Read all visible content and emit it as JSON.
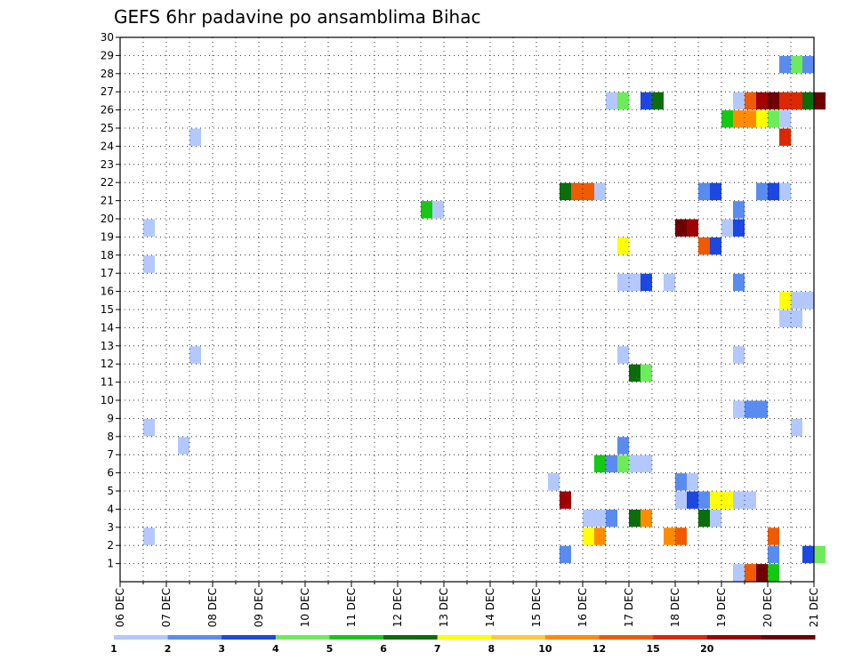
{
  "chart_data": {
    "type": "heatmap",
    "title": "GEFS 6hr padavine po ansamblima Bihac",
    "xlabel": "",
    "ylabel": "",
    "x_ticks": [
      "06 DEC",
      "07 DEC",
      "08 DEC",
      "09 DEC",
      "10 DEC",
      "11 DEC",
      "12 DEC",
      "13 DEC",
      "14 DEC",
      "15 DEC",
      "16 DEC",
      "17 DEC",
      "18 DEC",
      "19 DEC",
      "20 DEC",
      "21 DEC"
    ],
    "y_ticks": [
      "1",
      "2",
      "3",
      "4",
      "5",
      "6",
      "7",
      "8",
      "9",
      "10",
      "11",
      "12",
      "13",
      "14",
      "15",
      "16",
      "17",
      "18",
      "19",
      "20",
      "21",
      "22",
      "23",
      "24",
      "25",
      "26",
      "27",
      "28",
      "29",
      "30"
    ],
    "ylim": [
      0,
      30
    ],
    "grid": true,
    "legend": {
      "position": "bottom",
      "labels": [
        "1",
        "2",
        "3",
        "4",
        "5",
        "6",
        "7",
        "8",
        "10",
        "12",
        "15",
        "20"
      ],
      "colors": [
        "#b3c8ff",
        "#5a8cf0",
        "#1c47e0",
        "#6eeb5a",
        "#14c814",
        "#0a6e0a",
        "#ffff00",
        "#ffc83c",
        "#ff8c00",
        "#f05a00",
        "#dc2800",
        "#a00000",
        "#6e0000"
      ]
    },
    "cells": [
      {
        "day": 0.5,
        "member": 19,
        "level": 0
      },
      {
        "day": 0.5,
        "member": 17,
        "level": 0
      },
      {
        "day": 0.5,
        "member": 8,
        "level": 0
      },
      {
        "day": 0.5,
        "member": 2,
        "level": 0
      },
      {
        "day": 1.5,
        "member": 24,
        "level": 0
      },
      {
        "day": 1.5,
        "member": 12,
        "level": 0
      },
      {
        "day": 1.25,
        "member": 7,
        "level": 0
      },
      {
        "day": 6.5,
        "member": 20,
        "level": 4
      },
      {
        "day": 6.75,
        "member": 20,
        "level": 0
      },
      {
        "day": 9.25,
        "member": 5,
        "level": 0
      },
      {
        "day": 9.5,
        "member": 4,
        "level": 11
      },
      {
        "day": 9.5,
        "member": 1,
        "level": 1
      },
      {
        "day": 9.5,
        "member": 21,
        "level": 5
      },
      {
        "day": 9.75,
        "member": 21,
        "level": 9
      },
      {
        "day": 10.0,
        "member": 21,
        "level": 9
      },
      {
        "day": 10.25,
        "member": 21,
        "level": 0
      },
      {
        "day": 10.25,
        "member": 6,
        "level": 4
      },
      {
        "day": 10.5,
        "member": 6,
        "level": 1
      },
      {
        "day": 10.75,
        "member": 6,
        "level": 3
      },
      {
        "day": 11.0,
        "member": 6,
        "level": 0
      },
      {
        "day": 11.25,
        "member": 6,
        "level": 0
      },
      {
        "day": 10.0,
        "member": 3,
        "level": 0
      },
      {
        "day": 10.25,
        "member": 3,
        "level": 0
      },
      {
        "day": 10.5,
        "member": 3,
        "level": 1
      },
      {
        "day": 10.0,
        "member": 2,
        "level": 6
      },
      {
        "day": 10.25,
        "member": 2,
        "level": 8
      },
      {
        "day": 10.5,
        "member": 26,
        "level": 0
      },
      {
        "day": 10.75,
        "member": 26,
        "level": 3
      },
      {
        "day": 11.25,
        "member": 26,
        "level": 2
      },
      {
        "day": 11.5,
        "member": 26,
        "level": 5
      },
      {
        "day": 10.75,
        "member": 18,
        "level": 6
      },
      {
        "day": 10.75,
        "member": 16,
        "level": 0
      },
      {
        "day": 11.0,
        "member": 16,
        "level": 0
      },
      {
        "day": 11.25,
        "member": 16,
        "level": 2
      },
      {
        "day": 11.75,
        "member": 16,
        "level": 0
      },
      {
        "day": 10.75,
        "member": 12,
        "level": 0
      },
      {
        "day": 10.75,
        "member": 7,
        "level": 1
      },
      {
        "day": 11.0,
        "member": 11,
        "level": 5
      },
      {
        "day": 11.25,
        "member": 11,
        "level": 3
      },
      {
        "day": 11.0,
        "member": 3,
        "level": 5
      },
      {
        "day": 11.25,
        "member": 3,
        "level": 8
      },
      {
        "day": 11.75,
        "member": 2,
        "level": 8
      },
      {
        "day": 12.0,
        "member": 2,
        "level": 9
      },
      {
        "day": 12.0,
        "member": 19,
        "level": 12
      },
      {
        "day": 12.25,
        "member": 19,
        "level": 11
      },
      {
        "day": 12.0,
        "member": 5,
        "level": 1
      },
      {
        "day": 12.25,
        "member": 5,
        "level": 0
      },
      {
        "day": 12.0,
        "member": 4,
        "level": 0
      },
      {
        "day": 12.25,
        "member": 4,
        "level": 2
      },
      {
        "day": 12.5,
        "member": 4,
        "level": 1
      },
      {
        "day": 12.75,
        "member": 4,
        "level": 6
      },
      {
        "day": 13.0,
        "member": 4,
        "level": 6
      },
      {
        "day": 13.25,
        "member": 4,
        "level": 0
      },
      {
        "day": 13.5,
        "member": 4,
        "level": 0
      },
      {
        "day": 12.5,
        "member": 18,
        "level": 9
      },
      {
        "day": 12.75,
        "member": 18,
        "level": 2
      },
      {
        "day": 12.5,
        "member": 21,
        "level": 1
      },
      {
        "day": 12.75,
        "member": 21,
        "level": 2
      },
      {
        "day": 12.5,
        "member": 3,
        "level": 5
      },
      {
        "day": 12.75,
        "member": 3,
        "level": 0
      },
      {
        "day": 13.0,
        "member": 19,
        "level": 0
      },
      {
        "day": 13.25,
        "member": 19,
        "level": 2
      },
      {
        "day": 13.25,
        "member": 20,
        "level": 1
      },
      {
        "day": 13.25,
        "member": 16,
        "level": 1
      },
      {
        "day": 13.25,
        "member": 12,
        "level": 0
      },
      {
        "day": 13.25,
        "member": 9,
        "level": 0
      },
      {
        "day": 13.5,
        "member": 9,
        "level": 1
      },
      {
        "day": 13.75,
        "member": 9,
        "level": 1
      },
      {
        "day": 13.25,
        "member": 26,
        "level": 0
      },
      {
        "day": 13.5,
        "member": 26,
        "level": 9
      },
      {
        "day": 13.75,
        "member": 26,
        "level": 11
      },
      {
        "day": 14.0,
        "member": 26,
        "level": 12
      },
      {
        "day": 14.25,
        "member": 26,
        "level": 10
      },
      {
        "day": 14.5,
        "member": 26,
        "level": 10
      },
      {
        "day": 14.75,
        "member": 26,
        "level": 5
      },
      {
        "day": 15.0,
        "member": 26,
        "level": 12
      },
      {
        "day": 13.0,
        "member": 25,
        "level": 4
      },
      {
        "day": 13.25,
        "member": 25,
        "level": 8
      },
      {
        "day": 13.5,
        "member": 25,
        "level": 8
      },
      {
        "day": 13.75,
        "member": 25,
        "level": 6
      },
      {
        "day": 14.0,
        "member": 25,
        "level": 3
      },
      {
        "day": 14.25,
        "member": 25,
        "level": 0
      },
      {
        "day": 13.75,
        "member": 21,
        "level": 1
      },
      {
        "day": 14.0,
        "member": 21,
        "level": 2
      },
      {
        "day": 14.25,
        "member": 21,
        "level": 0
      },
      {
        "day": 13.25,
        "member": 0,
        "level": 0
      },
      {
        "day": 13.5,
        "member": 0,
        "level": 9
      },
      {
        "day": 13.75,
        "member": 0,
        "level": 12
      },
      {
        "day": 14.0,
        "member": 0,
        "level": 4
      },
      {
        "day": 14.0,
        "member": 2,
        "level": 9
      },
      {
        "day": 14.0,
        "member": 1,
        "level": 1
      },
      {
        "day": 14.25,
        "member": 28,
        "level": 1
      },
      {
        "day": 14.5,
        "member": 28,
        "level": 3
      },
      {
        "day": 14.75,
        "member": 28,
        "level": 1
      },
      {
        "day": 14.25,
        "member": 24,
        "level": 10
      },
      {
        "day": 14.25,
        "member": 15,
        "level": 6
      },
      {
        "day": 14.5,
        "member": 15,
        "level": 0
      },
      {
        "day": 14.75,
        "member": 15,
        "level": 0
      },
      {
        "day": 14.25,
        "member": 14,
        "level": 0
      },
      {
        "day": 14.5,
        "member": 14,
        "level": 0
      },
      {
        "day": 14.5,
        "member": 8,
        "level": 0
      },
      {
        "day": 14.75,
        "member": 1,
        "level": 2
      },
      {
        "day": 15.0,
        "member": 1,
        "level": 3
      }
    ]
  }
}
